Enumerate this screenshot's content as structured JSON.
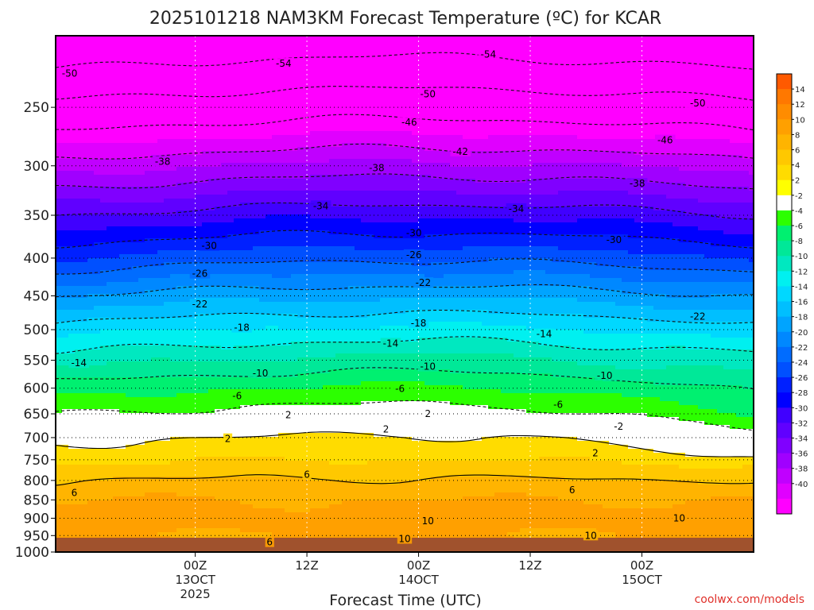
{
  "chart_data": {
    "type": "heatmap",
    "title": "2025101218 NAM3KM Forecast Temperature (ºC) for KCAR",
    "xlabel": "Forecast Time (UTC)",
    "ylabel": "",
    "credit": "coolwx.com/models",
    "y_axis": {
      "range": [
        1000,
        200
      ],
      "ticks": [
        250,
        300,
        350,
        400,
        450,
        500,
        550,
        600,
        650,
        700,
        750,
        800,
        850,
        900,
        950,
        1000
      ],
      "dotted_grid_levels": [
        250,
        300,
        350,
        400,
        450,
        500,
        550,
        600,
        650,
        700,
        750,
        800,
        850,
        900,
        950
      ]
    },
    "x_axis": {
      "range_hours": [
        -15,
        60
      ],
      "ticks": [
        {
          "hour": 0,
          "lines": [
            "00Z",
            "13OCT",
            "2025"
          ]
        },
        {
          "hour": 12,
          "lines": [
            "12Z"
          ]
        },
        {
          "hour": 24,
          "lines": [
            "00Z",
            "14OCT"
          ]
        },
        {
          "hour": 36,
          "lines": [
            "12Z"
          ]
        },
        {
          "hour": 48,
          "lines": [
            "00Z",
            "15OCT"
          ]
        }
      ]
    },
    "colorbar": {
      "ticks": [
        "14",
        "12",
        "10",
        "8",
        "6",
        "4",
        "2",
        "-2",
        "-4",
        "-6",
        "-8",
        "-10",
        "-12",
        "-14",
        "-16",
        "-18",
        "-20",
        "-22",
        "-24",
        "-26",
        "-28",
        "-30",
        "-32",
        "-34",
        "-36",
        "-38",
        "-40"
      ],
      "colors": [
        "#ff5a00",
        "#ff7800",
        "#ff8c00",
        "#ffa000",
        "#ffb400",
        "#ffc800",
        "#ffdc00",
        "#ffff00",
        "#ffffff",
        "#2cff00",
        "#00f070",
        "#00e898",
        "#00e8c0",
        "#00f0f0",
        "#00d8ff",
        "#00bfff",
        "#00a4ff",
        "#0088ff",
        "#006cff",
        "#0050ff",
        "#0020ff",
        "#0000ff",
        "#4000ff",
        "#6000ff",
        "#8000ff",
        "#a000ff",
        "#c000ff",
        "#e000ff",
        "#ff00ff"
      ]
    },
    "temperature_profile": [
      {
        "p": 1000,
        "t": 9
      },
      {
        "p": 950,
        "t": 8
      },
      {
        "p": 900,
        "t": 9
      },
      {
        "p": 850,
        "t": 8
      },
      {
        "p": 800,
        "t": 6
      },
      {
        "p": 750,
        "t": 3.5
      },
      {
        "p": 700,
        "t": 1.5
      },
      {
        "p": 650,
        "t": -2
      },
      {
        "p": 600,
        "t": -5
      },
      {
        "p": 550,
        "t": -9
      },
      {
        "p": 500,
        "t": -13
      },
      {
        "p": 450,
        "t": -18
      },
      {
        "p": 400,
        "t": -24
      },
      {
        "p": 350,
        "t": -30
      },
      {
        "p": 300,
        "t": -37
      },
      {
        "p": 250,
        "t": -45
      },
      {
        "p": 200,
        "t": -54
      }
    ],
    "contour_labels": [
      {
        "text": "-54",
        "x_hour": 9.5,
        "p": 218
      },
      {
        "text": "-54",
        "x_hour": 31.5,
        "p": 212
      },
      {
        "text": "-50",
        "x_hour": -13.5,
        "p": 225
      },
      {
        "text": "-50",
        "x_hour": 25,
        "p": 240
      },
      {
        "text": "-50",
        "x_hour": 54,
        "p": 247
      },
      {
        "text": "-46",
        "x_hour": 23,
        "p": 262
      },
      {
        "text": "-46",
        "x_hour": 50.5,
        "p": 277
      },
      {
        "text": "-42",
        "x_hour": 28.5,
        "p": 287
      },
      {
        "text": "-38",
        "x_hour": -3.5,
        "p": 296
      },
      {
        "text": "-38",
        "x_hour": 19.5,
        "p": 302
      },
      {
        "text": "-38",
        "x_hour": 47.5,
        "p": 317
      },
      {
        "text": "-34",
        "x_hour": 13.5,
        "p": 340
      },
      {
        "text": "-34",
        "x_hour": 34.5,
        "p": 343
      },
      {
        "text": "-30",
        "x_hour": 1.5,
        "p": 385
      },
      {
        "text": "-30",
        "x_hour": 23.5,
        "p": 370
      },
      {
        "text": "-30",
        "x_hour": 45,
        "p": 378
      },
      {
        "text": "-26",
        "x_hour": 23.5,
        "p": 396
      },
      {
        "text": "-26",
        "x_hour": 0.5,
        "p": 420
      },
      {
        "text": "-22",
        "x_hour": 24.5,
        "p": 432
      },
      {
        "text": "-22",
        "x_hour": 0.5,
        "p": 462
      },
      {
        "text": "-22",
        "x_hour": 54,
        "p": 480
      },
      {
        "text": "-18",
        "x_hour": 5,
        "p": 497
      },
      {
        "text": "-18",
        "x_hour": 24,
        "p": 490
      },
      {
        "text": "-14",
        "x_hour": 21,
        "p": 522
      },
      {
        "text": "-14",
        "x_hour": 37.5,
        "p": 507
      },
      {
        "text": "-14",
        "x_hour": -12.5,
        "p": 555
      },
      {
        "text": "-10",
        "x_hour": 25,
        "p": 561
      },
      {
        "text": "-10",
        "x_hour": 7,
        "p": 573
      },
      {
        "text": "-10",
        "x_hour": 44,
        "p": 577
      },
      {
        "text": "-6",
        "x_hour": 4.5,
        "p": 615
      },
      {
        "text": "-6",
        "x_hour": 22,
        "p": 601
      },
      {
        "text": "-6",
        "x_hour": 39,
        "p": 632
      },
      {
        "text": "2",
        "x_hour": 10,
        "p": 652
      },
      {
        "text": "2",
        "x_hour": 25,
        "p": 650
      },
      {
        "text": "-2",
        "x_hour": 45.5,
        "p": 676
      },
      {
        "text": "2",
        "x_hour": 3.5,
        "p": 703
      },
      {
        "text": "2",
        "x_hour": 20.5,
        "p": 682
      },
      {
        "text": "2",
        "x_hour": 43,
        "p": 735
      },
      {
        "text": "6",
        "x_hour": 12,
        "p": 786
      },
      {
        "text": "6",
        "x_hour": -13,
        "p": 832
      },
      {
        "text": "6",
        "x_hour": 40.5,
        "p": 824
      },
      {
        "text": "10",
        "x_hour": 25,
        "p": 908
      },
      {
        "text": "10",
        "x_hour": 52,
        "p": 900
      },
      {
        "text": "10",
        "x_hour": 42.5,
        "p": 950
      },
      {
        "text": "6",
        "x_hour": 8,
        "p": 970
      },
      {
        "text": "10",
        "x_hour": 22.5,
        "p": 960
      }
    ]
  }
}
